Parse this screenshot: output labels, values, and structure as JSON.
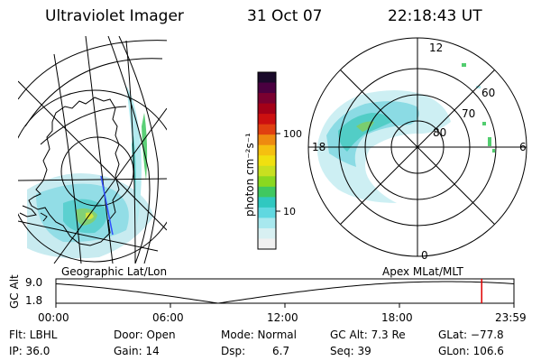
{
  "header": {
    "title": "Ultraviolet Imager",
    "date": "31 Oct 07",
    "time": "22:18:43 UT"
  },
  "colorbar": {
    "label": "photon cm⁻²s⁻¹",
    "ticks": [
      "100",
      "10"
    ],
    "colors": [
      "#1a0a2a",
      "#4a0040",
      "#7a0030",
      "#a40018",
      "#cc1010",
      "#e04010",
      "#ee8a10",
      "#f5c010",
      "#f0e010",
      "#c8e020",
      "#8ad820",
      "#40c860",
      "#30c8c0",
      "#60d8e0",
      "#a8e8ee",
      "#d8f0f2",
      "#f0f0f0"
    ]
  },
  "polar_plot": {
    "mlt_labels": [
      "12",
      "18",
      "6",
      "0"
    ],
    "mlat_labels": [
      "60",
      "70",
      "80"
    ]
  },
  "map_captions": {
    "left": "Geographic Lat/Lon",
    "right": "Apex MLat/MLT"
  },
  "altitude_strip": {
    "axis_label": "GC Alt",
    "y_ticks": [
      "9.0",
      "1.8"
    ],
    "x_ticks": [
      "00:00",
      "06:00",
      "12:00",
      "18:00",
      "23:59"
    ],
    "current_time_hours": 22.31,
    "marker_color": "#e00000"
  },
  "status": {
    "flt": "Flt: LBHL",
    "ip": "IP: 36.0",
    "door": "Door: Open",
    "gain": "Gain: 14",
    "mode": "Mode: Normal",
    "dsp_label": "Dsp:",
    "dsp_value": "6.7",
    "gc_alt": "GC Alt: 7.3 Re",
    "seq": "Seq: 39",
    "glat": "GLat: −77.8",
    "glon": "GLon: 106.6"
  }
}
